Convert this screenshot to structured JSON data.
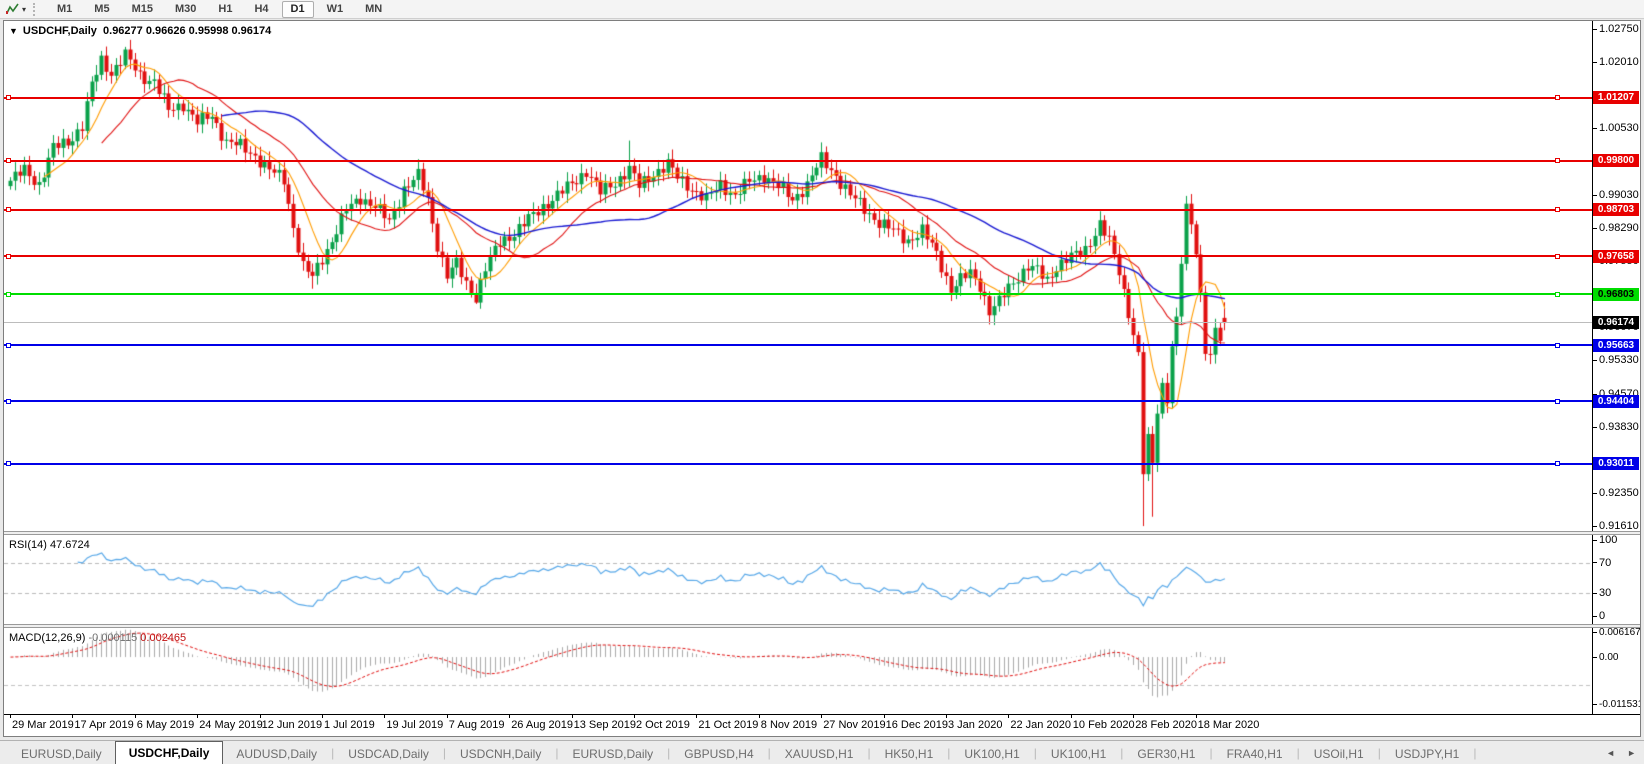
{
  "toolbar": {
    "timeframes": [
      "M1",
      "M5",
      "M15",
      "M30",
      "H1",
      "H4",
      "D1",
      "W1",
      "MN"
    ],
    "active_timeframe": "D1",
    "dropdown_caret": "▾"
  },
  "chart": {
    "title": {
      "dropdown_icon": "▼",
      "symbol": "USDCHF,Daily",
      "open": "0.96277",
      "high": "0.96626",
      "low": "0.95998",
      "close": "0.96174"
    },
    "price_axis_ticks": [
      [
        "1.02750",
        1.0275
      ],
      [
        "1.02010",
        1.0201
      ],
      [
        "1.00530",
        1.0053
      ],
      [
        "0.99030",
        0.9903
      ],
      [
        "0.98290",
        0.9829
      ],
      [
        "0.97550",
        0.9755
      ],
      [
        "0.96070",
        0.9607
      ],
      [
        "0.95330",
        0.9533
      ],
      [
        "0.94570",
        0.9457
      ],
      [
        "0.93830",
        0.9383
      ],
      [
        "0.92350",
        0.9235
      ],
      [
        "0.91610",
        0.9161
      ]
    ],
    "hlines": [
      {
        "label": "1.01207",
        "value": 1.01207,
        "color": "#e80000",
        "text": "#ffffff"
      },
      {
        "label": "0.99800",
        "value": 0.998,
        "color": "#e80000",
        "text": "#ffffff"
      },
      {
        "label": "0.98703",
        "value": 0.98703,
        "color": "#e80000",
        "text": "#ffffff"
      },
      {
        "label": "0.97658",
        "value": 0.97658,
        "color": "#e80000",
        "text": "#ffffff"
      },
      {
        "label": "0.96803",
        "value": 0.96803,
        "color": "#00dd00",
        "text": "#000000"
      },
      {
        "label": "0.95663",
        "value": 0.95663,
        "color": "#0000e8",
        "text": "#ffffff"
      },
      {
        "label": "0.94404",
        "value": 0.94404,
        "color": "#0000e8",
        "text": "#ffffff"
      },
      {
        "label": "0.93011",
        "value": 0.93011,
        "color": "#0000e8",
        "text": "#ffffff"
      }
    ],
    "current_price": {
      "label": "0.96174",
      "value": 0.96174,
      "line_color": "#bcbcbc",
      "tag_bg": "#000000",
      "tag_text": "#ffffff"
    }
  },
  "chart_data": {
    "type": "candlestick",
    "symbol": "USDCHF",
    "timeframe": "Daily",
    "ylim": [
      0.915,
      1.0293
    ],
    "candles_total": 254,
    "up_color": "#0aa14a",
    "down_color": "#e01010",
    "anchors": [
      [
        0,
        0.9935
      ],
      [
        3,
        0.9958
      ],
      [
        6,
        0.9928
      ],
      [
        9,
        1.0008
      ],
      [
        12,
        1.0022
      ],
      [
        15,
        1.0058
      ],
      [
        17,
        1.0148
      ],
      [
        19,
        1.0205
      ],
      [
        21,
        1.0178
      ],
      [
        24,
        1.0215
      ],
      [
        27,
        1.0172
      ],
      [
        30,
        1.0158
      ],
      [
        33,
        1.0092
      ],
      [
        36,
        1.0108
      ],
      [
        39,
        1.0065
      ],
      [
        42,
        1.0082
      ],
      [
        45,
        1.0022
      ],
      [
        48,
        1.0012
      ],
      [
        51,
        0.9992
      ],
      [
        54,
        0.9958
      ],
      [
        57,
        0.9938
      ],
      [
        59,
        0.9832
      ],
      [
        61,
        0.9742
      ],
      [
        63,
        0.9718
      ],
      [
        65,
        0.9762
      ],
      [
        67,
        0.9802
      ],
      [
        70,
        0.9868
      ],
      [
        73,
        0.9898
      ],
      [
        76,
        0.9878
      ],
      [
        79,
        0.9842
      ],
      [
        82,
        0.9918
      ],
      [
        85,
        0.9945
      ],
      [
        87,
        0.9892
      ],
      [
        89,
        0.9792
      ],
      [
        91,
        0.9722
      ],
      [
        93,
        0.9748
      ],
      [
        95,
        0.9705
      ],
      [
        97,
        0.9675
      ],
      [
        99,
        0.9738
      ],
      [
        102,
        0.9798
      ],
      [
        105,
        0.9818
      ],
      [
        108,
        0.9848
      ],
      [
        111,
        0.9878
      ],
      [
        114,
        0.9902
      ],
      [
        117,
        0.9928
      ],
      [
        120,
        0.9958
      ],
      [
        123,
        0.9908
      ],
      [
        126,
        0.9932
      ],
      [
        129,
        0.9962
      ],
      [
        131,
        0.9922
      ],
      [
        134,
        0.9952
      ],
      [
        137,
        0.9972
      ],
      [
        139,
        0.9942
      ],
      [
        142,
        0.9918
      ],
      [
        145,
        0.9892
      ],
      [
        148,
        0.9928
      ],
      [
        151,
        0.9902
      ],
      [
        154,
        0.9932
      ],
      [
        157,
        0.9948
      ],
      [
        160,
        0.9922
      ],
      [
        163,
        0.9892
      ],
      [
        166,
        0.9928
      ],
      [
        169,
        0.9982
      ],
      [
        172,
        0.9948
      ],
      [
        175,
        0.9902
      ],
      [
        178,
        0.9872
      ],
      [
        181,
        0.9842
      ],
      [
        184,
        0.9822
      ],
      [
        187,
        0.9802
      ],
      [
        190,
        0.9822
      ],
      [
        193,
        0.9772
      ],
      [
        196,
        0.9692
      ],
      [
        198,
        0.9712
      ],
      [
        200,
        0.9728
      ],
      [
        202,
        0.9702
      ],
      [
        204,
        0.9642
      ],
      [
        206,
        0.9662
      ],
      [
        208,
        0.9696
      ],
      [
        210,
        0.9722
      ],
      [
        212,
        0.9742
      ],
      [
        214,
        0.9732
      ],
      [
        216,
        0.9712
      ],
      [
        218,
        0.9744
      ],
      [
        220,
        0.9758
      ],
      [
        222,
        0.9768
      ],
      [
        224,
        0.9782
      ],
      [
        227,
        0.9838
      ],
      [
        229,
        0.9798
      ],
      [
        231,
        0.9732
      ],
      [
        233,
        0.9642
      ],
      [
        235,
        0.9542
      ],
      [
        236,
        0.9282
      ],
      [
        237,
        0.9352
      ],
      [
        238,
        0.9302
      ],
      [
        239,
        0.9422
      ],
      [
        240,
        0.9478
      ],
      [
        241,
        0.9452
      ],
      [
        242,
        0.9562
      ],
      [
        243,
        0.9622
      ],
      [
        244,
        0.9752
      ],
      [
        245,
        0.9868
      ],
      [
        246,
        0.9842
      ],
      [
        247,
        0.9778
      ],
      [
        248,
        0.9682
      ],
      [
        249,
        0.9562
      ],
      [
        250,
        0.9538
      ],
      [
        251,
        0.9598
      ],
      [
        252,
        0.9578
      ],
      [
        253,
        0.96174
      ]
    ],
    "spikes": [
      {
        "i": 19,
        "high": 1.0226
      },
      {
        "i": 24,
        "high": 1.0235
      },
      {
        "i": 63,
        "low": 0.9693
      },
      {
        "i": 97,
        "low": 0.9659
      },
      {
        "i": 129,
        "high": 1.0025
      },
      {
        "i": 204,
        "low": 0.9613
      },
      {
        "i": 236,
        "low": 0.9161
      },
      {
        "i": 238,
        "low": 0.9182
      },
      {
        "i": 245,
        "high": 0.9901
      },
      {
        "i": 250,
        "low": 0.9524
      }
    ],
    "last_candle": {
      "open": 0.96277,
      "high": 0.96626,
      "low": 0.95998,
      "close": 0.96174
    },
    "moving_averages": [
      {
        "name": "fast",
        "period": 8,
        "color": "#ff9c00"
      },
      {
        "name": "medium",
        "period": 20,
        "color": "#e01010"
      },
      {
        "name": "slow",
        "period": 45,
        "color": "#1a1ad2"
      }
    ]
  },
  "rsi": {
    "label": "RSI(14)",
    "value": "47.6724",
    "period": 14,
    "color": "#58a8e8",
    "levels": [
      70,
      30
    ],
    "axis_ticks": [
      [
        "100",
        100
      ],
      [
        "70",
        70
      ],
      [
        "30",
        30
      ],
      [
        "0",
        0
      ]
    ]
  },
  "macd": {
    "label": "MACD(12,26,9)",
    "main_value": "-0.000115",
    "signal_value": "0.002465",
    "fast": 12,
    "slow": 26,
    "signal": 9,
    "main_color": "#aaaaaa",
    "signal_color": "#e01010",
    "ylim": [
      -0.011531,
      0.006167
    ],
    "dashed_level": -0.0069,
    "axis_ticks": [
      [
        "0.006167",
        0.006167
      ],
      [
        "0.00",
        0
      ],
      [
        "-0.011531",
        -0.011531
      ]
    ]
  },
  "date_axis": {
    "labels": [
      [
        "29 Mar 2019",
        0
      ],
      [
        "17 Apr 2019",
        13
      ],
      [
        "6 May 2019",
        26
      ],
      [
        "24 May 2019",
        39
      ],
      [
        "12 Jun 2019",
        52
      ],
      [
        "1 Jul 2019",
        65
      ],
      [
        "19 Jul 2019",
        78
      ],
      [
        "7 Aug 2019",
        91
      ],
      [
        "26 Aug 2019",
        104
      ],
      [
        "13 Sep 2019",
        117
      ],
      [
        "2 Oct 2019",
        130
      ],
      [
        "21 Oct 2019",
        143
      ],
      [
        "8 Nov 2019",
        156
      ],
      [
        "27 Nov 2019",
        169
      ],
      [
        "16 Dec 2019",
        182
      ],
      [
        "3 Jan 2020",
        195
      ],
      [
        "22 Jan 2020",
        208
      ],
      [
        "10 Feb 2020",
        221
      ],
      [
        "28 Feb 2020",
        234
      ],
      [
        "18 Mar 2020",
        247
      ]
    ]
  },
  "tabs": {
    "items": [
      {
        "label": "EURUSD,Daily",
        "active": false
      },
      {
        "label": "USDCHF,Daily",
        "active": true
      },
      {
        "label": "AUDUSD,Daily",
        "active": false
      },
      {
        "label": "USDCAD,Daily",
        "active": false
      },
      {
        "label": "USDCNH,Daily",
        "active": false
      },
      {
        "label": "EURUSD,Daily",
        "active": false
      },
      {
        "label": "GBPUSD,H4",
        "active": false
      },
      {
        "label": "XAUUSD,H1",
        "active": false
      },
      {
        "label": "HK50,H1",
        "active": false
      },
      {
        "label": "UK100,H1",
        "active": false
      },
      {
        "label": "UK100,H1",
        "active": false
      },
      {
        "label": "GER30,H1",
        "active": false
      },
      {
        "label": "FRA40,H1",
        "active": false
      },
      {
        "label": "USOil,H1",
        "active": false
      },
      {
        "label": "USDJPY,H1",
        "active": false
      }
    ],
    "nav_left": "◄",
    "nav_right": "►"
  }
}
